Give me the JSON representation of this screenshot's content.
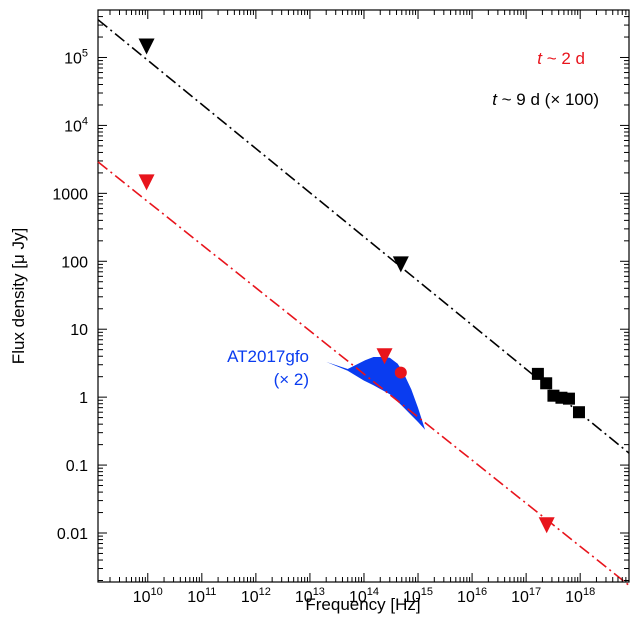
{
  "chart_data": {
    "type": "scatter",
    "xlabel": "Frequency [Hz]",
    "ylabel": "Flux density [μ Jy]",
    "x_scale": "log",
    "y_scale": "log",
    "xlim": [
      1200000000.0,
      8e+18
    ],
    "ylim": [
      0.0019,
      500000.0
    ],
    "grid": false,
    "x_ticks": [
      {
        "value": 10000000000.0,
        "base": "10",
        "exp": "10"
      },
      {
        "value": 100000000000.0,
        "base": "10",
        "exp": "11"
      },
      {
        "value": 1000000000000.0,
        "base": "10",
        "exp": "12"
      },
      {
        "value": 10000000000000.0,
        "base": "10",
        "exp": "13"
      },
      {
        "value": 100000000000000.0,
        "base": "10",
        "exp": "14"
      },
      {
        "value": 1000000000000000.0,
        "base": "10",
        "exp": "15"
      },
      {
        "value": 1e+16,
        "base": "10",
        "exp": "16"
      },
      {
        "value": 1e+17,
        "base": "10",
        "exp": "17"
      },
      {
        "value": 1e+18,
        "base": "10",
        "exp": "18"
      }
    ],
    "y_ticks": [
      {
        "value": 0.01,
        "text": "0.01"
      },
      {
        "value": 0.1,
        "text": "0.1"
      },
      {
        "value": 1,
        "text": "1"
      },
      {
        "value": 10,
        "text": "10"
      },
      {
        "value": 100,
        "text": "100"
      },
      {
        "value": 1000,
        "text": "1000"
      },
      {
        "value": 10000,
        "base": "10",
        "exp": "4"
      },
      {
        "value": 100000,
        "base": "10",
        "exp": "5"
      }
    ],
    "power_law_fits": [
      {
        "name": "t ~ 9 d (× 100) model",
        "color": "#000000",
        "dash": "dash-dot",
        "x": [
          1200000000.0,
          8e+18
        ],
        "y": [
          360000.0,
          0.15
        ]
      },
      {
        "name": "t ~ 2 d model",
        "color": "#e8141c",
        "dash": "dash-dot",
        "x": [
          1200000000.0,
          8e+18
        ],
        "y": [
          2900,
          0.0017
        ]
      }
    ],
    "upper_limits": [
      {
        "epoch": "t ~ 9 d",
        "color": "#000000",
        "x": 9500000000.0,
        "y": 145000.0
      },
      {
        "epoch": "t ~ 9 d",
        "color": "#000000",
        "x": 480000000000000.0,
        "y": 90
      },
      {
        "epoch": "t ~ 2 d",
        "color": "#e8141c",
        "x": 9500000000.0,
        "y": 1450
      },
      {
        "epoch": "t ~ 2 d",
        "color": "#e8141c",
        "x": 240000000000000.0,
        "y": 4.0
      },
      {
        "epoch": "t ~ 2 d",
        "color": "#e8141c",
        "x": 2.4e+17,
        "y": 0.013
      }
    ],
    "detections": [
      {
        "epoch": "t ~ 2 d",
        "marker": "circle",
        "color": "#e8141c",
        "x": 480000000000000.0,
        "y": 2.3
      },
      {
        "epoch": "t ~ 9 d",
        "marker": "square",
        "color": "#000000",
        "x": 1.65e+17,
        "y": 2.2
      },
      {
        "epoch": "t ~ 9 d",
        "marker": "square",
        "color": "#000000",
        "x": 2.35e+17,
        "y": 1.6
      },
      {
        "epoch": "t ~ 9 d",
        "marker": "square",
        "color": "#000000",
        "x": 3.2e+17,
        "y": 1.05
      },
      {
        "epoch": "t ~ 9 d",
        "marker": "square",
        "color": "#000000",
        "x": 4.5e+17,
        "y": 0.98
      },
      {
        "epoch": "t ~ 9 d",
        "marker": "square",
        "color": "#000000",
        "x": 6.2e+17,
        "y": 0.95
      },
      {
        "epoch": "t ~ 9 d",
        "marker": "square",
        "color": "#000000",
        "x": 9.5e+17,
        "y": 0.6
      }
    ],
    "kilonova_band": {
      "name": "AT2017gfo",
      "scale_note": "(× 2)",
      "color": "#0a3cf0",
      "upper": [
        [
          20000000000000.0,
          3.3
        ],
        [
          50000000000000.0,
          2.6
        ],
        [
          105000000000000.0,
          3.5
        ],
        [
          150000000000000.0,
          3.9
        ],
        [
          220000000000000.0,
          3.9
        ],
        [
          300000000000000.0,
          3.8
        ],
        [
          420000000000000.0,
          3.1
        ],
        [
          550000000000000.0,
          2.2
        ],
        [
          750000000000000.0,
          1.3
        ],
        [
          1000000000000000.0,
          0.7
        ],
        [
          1350000000000000.0,
          0.33
        ]
      ],
      "lower": [
        [
          1350000000000000.0,
          0.33
        ],
        [
          1000000000000000.0,
          0.43
        ],
        [
          500000000000000.0,
          0.75
        ],
        [
          300000000000000.0,
          1.1
        ],
        [
          150000000000000.0,
          1.5
        ],
        [
          100000000000000.0,
          1.75
        ],
        [
          50000000000000.0,
          2.45
        ],
        [
          20000000000000.0,
          3.3
        ]
      ]
    },
    "legend": [
      {
        "label_italic": "t",
        "label_rest": " ~ 2 d",
        "color": "#e8141c"
      },
      {
        "label_italic": "t",
        "label_rest": " ~ 9 d (× 100)",
        "color": "#000000"
      }
    ]
  }
}
